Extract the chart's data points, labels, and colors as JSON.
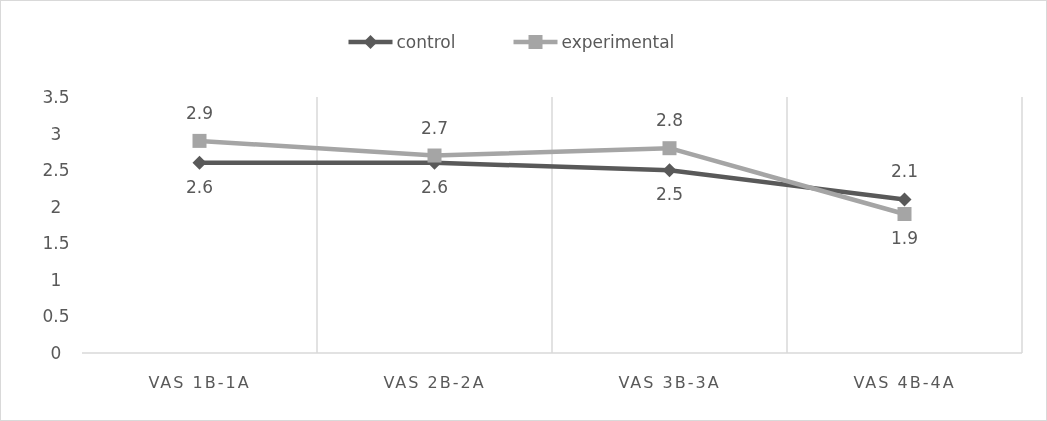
{
  "chart_data": {
    "type": "line",
    "categories": [
      "VAS 1B-1A",
      "VAS 2B-2A",
      "VAS 3B-3A",
      "VAS 4B-4A"
    ],
    "series": [
      {
        "name": "control",
        "color": "#595959",
        "marker": "diamond",
        "values": [
          2.6,
          2.6,
          2.5,
          2.1
        ]
      },
      {
        "name": "experimental",
        "color": "#a5a5a5",
        "marker": "square",
        "values": [
          2.9,
          2.7,
          2.8,
          1.9
        ]
      }
    ],
    "ylim": [
      0,
      3.5
    ],
    "yticks": [
      0,
      0.5,
      1,
      1.5,
      2,
      2.5,
      3,
      3.5
    ],
    "grid": "x",
    "legend": "top",
    "data_labels": true
  }
}
